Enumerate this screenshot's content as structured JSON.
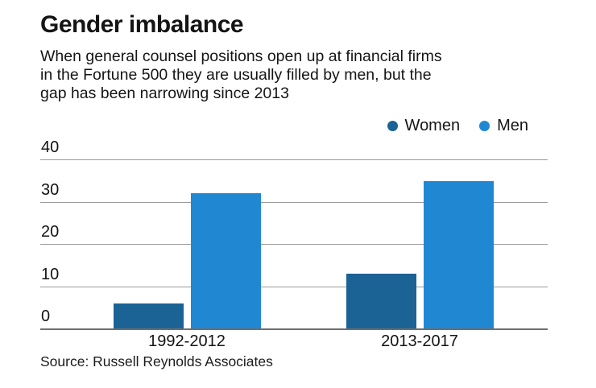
{
  "chart_data": {
    "type": "bar",
    "title": "Gender imbalance",
    "subtitle_lines": [
      "When general counsel positions open up at financial firms",
      "in the Fortune 500 they are usually filled by men, but the",
      "gap has been narrowing since 2013"
    ],
    "categories": [
      "1992-2012",
      "2013-2017"
    ],
    "series": [
      {
        "name": "Women",
        "color": "#1b6395",
        "values": [
          6,
          13
        ]
      },
      {
        "name": "Men",
        "color": "#2088d2",
        "values": [
          32,
          35
        ]
      }
    ],
    "xlabel": "",
    "ylabel": "",
    "ylim": [
      0,
      40
    ],
    "yticks": [
      0,
      10,
      20,
      30,
      40
    ],
    "grid": true,
    "legend_position": "top-right",
    "source": "Source: Russell Reynolds Associates",
    "colors": {
      "gridline": "#9b9b9b",
      "axisline": "#6e6e6e",
      "text": "#151515"
    }
  }
}
